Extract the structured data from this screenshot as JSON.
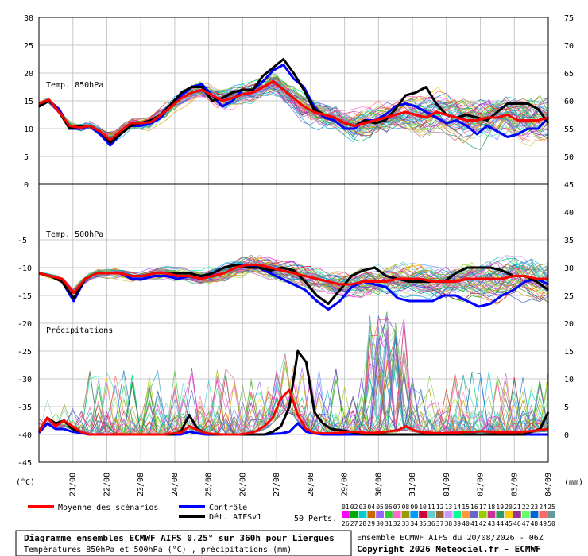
{
  "chart_data": {
    "type": "line",
    "x_dates": [
      "21/08",
      "22/08",
      "23/08",
      "24/08",
      "25/08",
      "26/08",
      "27/08",
      "28/08",
      "29/08",
      "30/08",
      "31/08",
      "01/09",
      "02/09",
      "03/09",
      "04/09"
    ],
    "left_ticks_top": [
      "30",
      "25",
      "20",
      "15",
      "10",
      "5",
      "0"
    ],
    "right_ticks_top": [
      "75",
      "70",
      "65",
      "60",
      "55",
      "50"
    ],
    "left_ticks_bottom": [
      "-5",
      "-10",
      "-15",
      "-20",
      "-25",
      "-30",
      "-35",
      "-40",
      "-45"
    ],
    "right_ticks_bottom": [
      "45",
      "40",
      "35",
      "30",
      "25",
      "20",
      "15",
      "10",
      "5",
      "0"
    ],
    "left_unit": "(°C)",
    "right_unit": "(mm)",
    "panel_labels": {
      "t850": "Temp. 850hPa",
      "t500": "Temp. 500hPa",
      "precip": "Précipitations"
    },
    "t850": {
      "ylim": [
        0,
        30
      ],
      "mean": [
        14.5,
        15.2,
        13.0,
        10.5,
        10.2,
        10.5,
        9.5,
        8.0,
        9.5,
        11.0,
        11.0,
        11.2,
        12.5,
        14.0,
        15.5,
        16.5,
        17.0,
        16.0,
        15.0,
        15.5,
        16.2,
        16.5,
        17.5,
        18.5,
        17.0,
        15.5,
        14.0,
        13.0,
        12.5,
        12.0,
        11.0,
        10.5,
        11.0,
        11.5,
        12.0,
        12.5,
        13.0,
        12.5,
        12.0,
        13.0,
        12.5,
        12.0,
        11.5,
        11.5,
        12.0,
        12.0,
        12.5,
        11.5,
        11.5,
        11.5,
        12.0
      ],
      "control": [
        14.0,
        15.0,
        13.5,
        10.0,
        10.0,
        10.5,
        9.0,
        7.0,
        9.0,
        10.5,
        10.5,
        11.0,
        12.0,
        14.5,
        16.0,
        17.5,
        18.0,
        16.0,
        14.0,
        15.0,
        17.0,
        17.0,
        18.5,
        20.5,
        21.5,
        19.0,
        17.5,
        14.0,
        12.0,
        11.5,
        10.0,
        10.0,
        11.5,
        11.5,
        12.5,
        14.0,
        14.5,
        14.0,
        13.0,
        12.0,
        11.0,
        11.5,
        10.5,
        9.0,
        10.5,
        9.5,
        8.5,
        9.0,
        10.0,
        10.0,
        12.0
      ],
      "det": [
        14.0,
        15.0,
        13.0,
        10.0,
        10.5,
        10.5,
        9.5,
        7.5,
        9.0,
        10.5,
        11.0,
        11.5,
        12.5,
        14.5,
        16.5,
        17.5,
        17.5,
        15.0,
        15.5,
        16.5,
        17.0,
        17.0,
        19.5,
        21.0,
        22.5,
        20.0,
        17.0,
        13.5,
        12.5,
        12.0,
        11.0,
        10.5,
        11.5,
        11.0,
        11.5,
        13.5,
        16.0,
        16.5,
        17.5,
        14.5,
        12.5,
        12.0,
        12.5,
        12.0,
        11.5,
        13.0,
        14.5,
        14.5,
        14.5,
        13.5,
        11.0
      ]
    },
    "t500": {
      "ylim": [
        -22,
        -2
      ],
      "mean": [
        -11.0,
        -11.5,
        -12.0,
        -14.5,
        -12.0,
        -11.0,
        -11.0,
        -11.0,
        -11.5,
        -11.5,
        -11.0,
        -11.0,
        -11.5,
        -11.5,
        -12.0,
        -11.5,
        -11.0,
        -10.0,
        -9.5,
        -9.5,
        -10.0,
        -10.5,
        -11.0,
        -11.5,
        -12.0,
        -12.5,
        -13.0,
        -13.0,
        -12.5,
        -12.5,
        -12.5,
        -12.0,
        -12.0,
        -12.0,
        -12.5,
        -12.5,
        -12.5,
        -12.0,
        -12.0,
        -12.0,
        -12.0,
        -11.5,
        -11.5,
        -12.0,
        -12.0
      ],
      "control": [
        -11.0,
        -11.5,
        -12.5,
        -16.0,
        -12.0,
        -11.0,
        -11.0,
        -11.0,
        -12.0,
        -12.0,
        -11.5,
        -11.5,
        -12.0,
        -11.5,
        -12.0,
        -11.0,
        -10.0,
        -9.5,
        -9.5,
        -10.0,
        -11.0,
        -12.0,
        -13.0,
        -14.0,
        -16.0,
        -17.5,
        -16.0,
        -13.5,
        -12.5,
        -13.0,
        -13.5,
        -15.5,
        -16.0,
        -16.0,
        -16.0,
        -15.0,
        -15.0,
        -16.0,
        -17.0,
        -16.5,
        -15.0,
        -14.0,
        -12.5,
        -12.0,
        -13.0
      ],
      "det": [
        -11.0,
        -11.5,
        -12.5,
        -15.5,
        -12.0,
        -11.0,
        -11.0,
        -11.0,
        -11.5,
        -11.5,
        -11.0,
        -11.0,
        -11.0,
        -11.0,
        -11.5,
        -11.0,
        -10.0,
        -9.5,
        -10.0,
        -10.0,
        -10.5,
        -10.0,
        -10.5,
        -12.5,
        -15.0,
        -16.5,
        -14.0,
        -11.5,
        -10.5,
        -10.0,
        -11.5,
        -12.0,
        -12.5,
        -12.5,
        -12.5,
        -12.5,
        -11.0,
        -10.0,
        -10.0,
        -10.0,
        -10.5,
        -11.5,
        -11.5,
        -12.5,
        -14.0
      ]
    },
    "precip": {
      "ylim_mm": [
        0,
        25
      ],
      "mean": [
        0.5,
        3,
        1.5,
        2.5,
        1.5,
        0.5,
        0,
        0,
        0,
        0,
        0,
        0,
        0,
        0,
        0,
        0,
        0.2,
        0.3,
        1.5,
        0.8,
        0.2,
        0.1,
        0,
        0,
        0,
        0.2,
        0.6,
        1.5,
        3,
        6.5,
        8,
        3.5,
        1,
        0.3,
        0.2,
        0.2,
        0.3,
        0.5,
        0.5,
        0.3,
        0.3,
        0.4,
        0.6,
        0.8,
        1.5,
        0.7,
        0.4,
        0.3,
        0.2,
        0.3,
        0.3,
        0.5,
        0.5,
        0.6,
        0.5,
        0.4,
        0.4,
        0.4,
        0.5,
        0.6,
        0.8,
        1.0
      ],
      "control": [
        0.3,
        2,
        1,
        1,
        0.5,
        0.3,
        0,
        0,
        0,
        0,
        0,
        0,
        0,
        0,
        0,
        0,
        0,
        0,
        0.5,
        0.2,
        0,
        0,
        0,
        0,
        0,
        0,
        0,
        0,
        0.1,
        0.2,
        0.5,
        2,
        0.5,
        0.2,
        0,
        0,
        0,
        0,
        0,
        0,
        0,
        0,
        0,
        0,
        0,
        0,
        0,
        0,
        0,
        0,
        0,
        0,
        0,
        0,
        0,
        0,
        0,
        0,
        0,
        0,
        0,
        0
      ],
      "det": [
        0.5,
        3,
        2,
        2.5,
        1,
        0.5,
        0,
        0,
        0,
        0,
        0,
        0,
        0,
        0,
        0,
        0,
        0,
        0.5,
        3.5,
        1,
        0.2,
        0,
        0,
        0,
        0,
        0,
        0,
        0,
        0.5,
        1.5,
        5,
        15,
        13,
        4,
        2,
        1,
        0.8,
        0.6,
        0.2,
        0,
        0,
        0,
        0,
        0,
        0,
        0,
        0,
        0,
        0,
        0,
        0,
        0,
        0,
        0,
        0,
        0,
        0,
        0,
        0,
        0.5,
        1,
        4
      ]
    },
    "series": [
      {
        "name": "Moyenne des scénarios",
        "color": "#ff0000"
      },
      {
        "name": "Contrôle",
        "color": "#0000ff"
      },
      {
        "name": "Dét. AIFSv1",
        "color": "#000000"
      }
    ],
    "perts_label": "50 Perts.",
    "perts_count": 50
  },
  "footer": {
    "title": "Diagramme ensembles ECMWF AIFS 0.25° sur 360h pour Liergues",
    "subtitle": "Températures 850hPa et 500hPa (°C) , précipitations (mm)",
    "run": "Ensemble ECMWF AIFS du 20/08/2026 - 06Z",
    "copyright": "Copyright 2026 Meteociel.fr - ECMWF"
  }
}
